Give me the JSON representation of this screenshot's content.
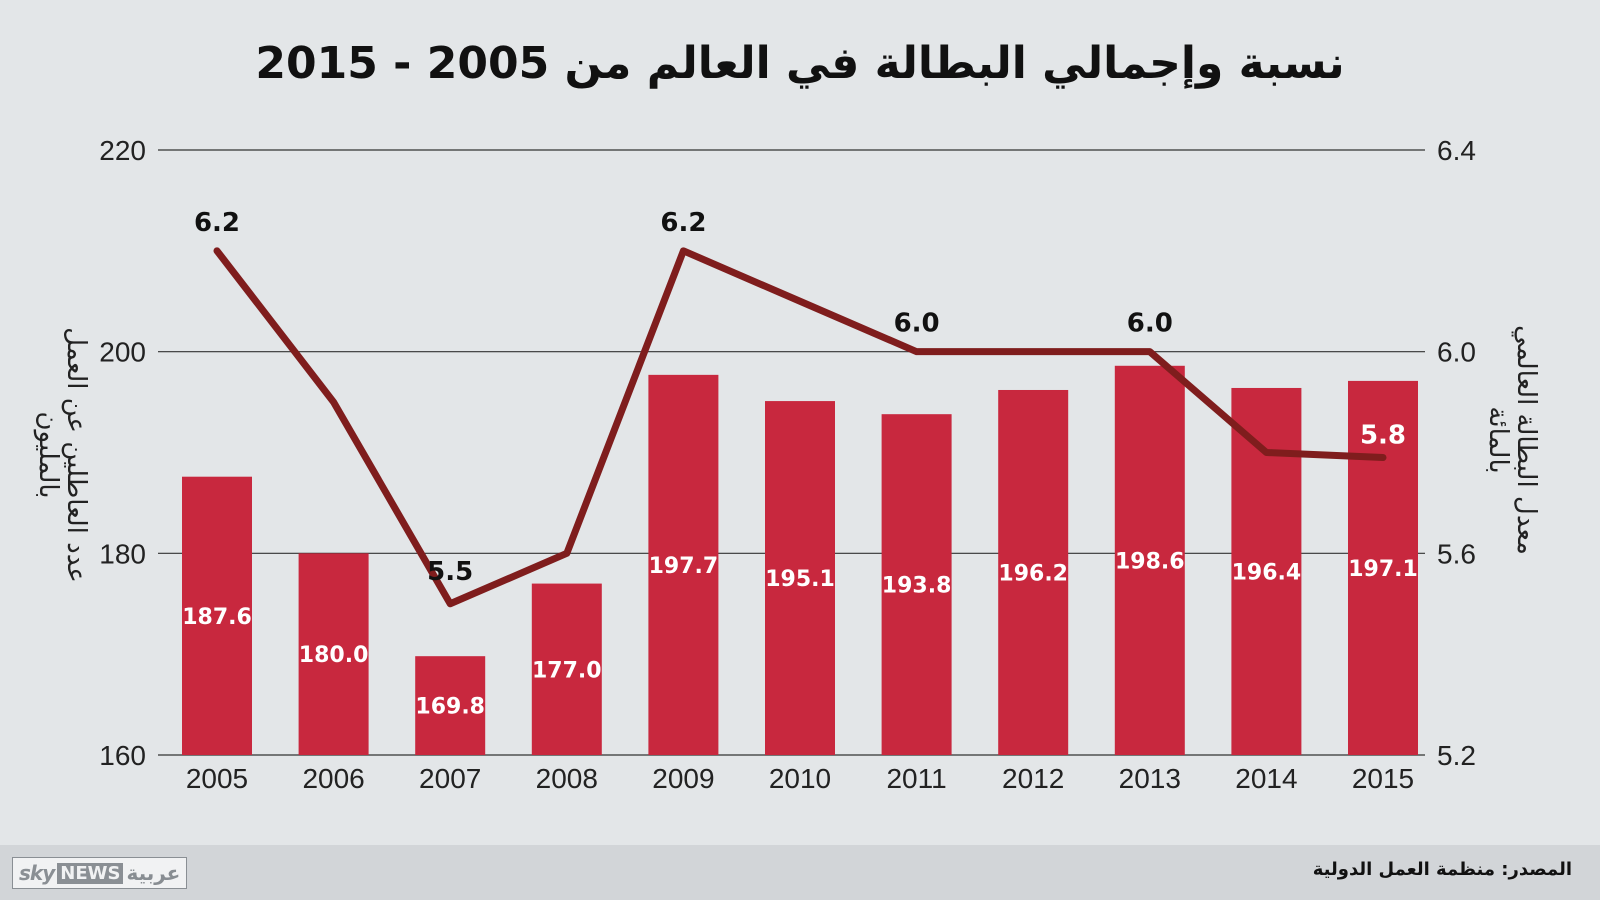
{
  "chart_data": {
    "type": "bar+line",
    "title": "نسبة وإجمالي البطالة في العالم من 2005 - 2015",
    "categories": [
      "2005",
      "2006",
      "2007",
      "2008",
      "2009",
      "2010",
      "2011",
      "2012",
      "2013",
      "2014",
      "2015"
    ],
    "series": [
      {
        "type": "bar",
        "axis": "left",
        "values": [
          187.6,
          180.0,
          169.8,
          177.0,
          197.7,
          195.1,
          193.8,
          196.2,
          198.6,
          196.4,
          197.1
        ],
        "labels": [
          "187.6",
          "180.0",
          "169.8",
          "177.0",
          "197.7",
          "195.1",
          "193.8",
          "196.2",
          "198.6",
          "196.4",
          "197.1"
        ],
        "color": "#c8283e"
      },
      {
        "type": "line",
        "axis": "right",
        "values": [
          6.2,
          5.9,
          5.5,
          5.6,
          6.2,
          6.1,
          6.0,
          6.0,
          6.0,
          5.8,
          5.79
        ],
        "point_labels": [
          {
            "index": 0,
            "text": "6.2"
          },
          {
            "index": 2,
            "text": "5.5"
          },
          {
            "index": 4,
            "text": "6.2"
          },
          {
            "index": 6,
            "text": "6.0"
          },
          {
            "index": 8,
            "text": "6.0"
          },
          {
            "index": 10,
            "text": "5.8"
          }
        ],
        "color": "#7f1d1d"
      }
    ],
    "y_left": {
      "label_line1": "عدد العاطلين عن العمل",
      "label_line2": "بالمليون",
      "ticks": [
        "160",
        "180",
        "200",
        "220"
      ],
      "ylim": [
        160,
        220
      ]
    },
    "y_right": {
      "label_line1": "معدل البطالة العالمي",
      "label_line2": "بالمائة",
      "ticks": [
        "5.2",
        "5.6",
        "6.0",
        "6.4"
      ],
      "ylim": [
        5.2,
        6.4
      ]
    },
    "grid": true
  },
  "footer": {
    "logo_sky": "sky",
    "logo_news": "NEWS",
    "logo_arabic": "عربية",
    "source": "المصدر: منظمة العمل الدولية"
  }
}
